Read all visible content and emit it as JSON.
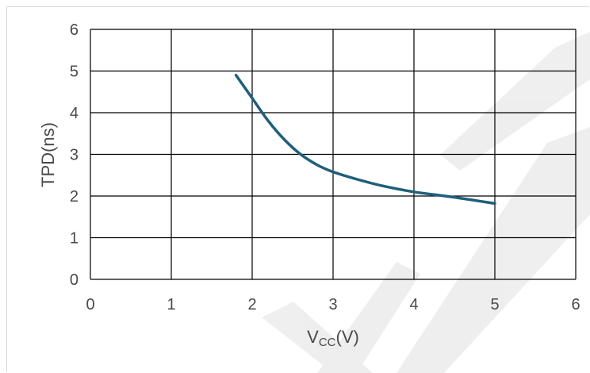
{
  "chart_data": {
    "type": "line",
    "title": "",
    "xlabel": "VCC(V)",
    "xlabel_main": "V",
    "xlabel_sub": "CC",
    "xlabel_unit": "(V)",
    "ylabel": "TPD(ns)",
    "xlim": [
      0,
      6
    ],
    "ylim": [
      0,
      6
    ],
    "xticks": [
      0,
      1,
      2,
      3,
      4,
      5,
      6
    ],
    "yticks": [
      0,
      1,
      2,
      3,
      4,
      5,
      6
    ],
    "grid": true,
    "series": [
      {
        "color": "#1f5f7a",
        "x": [
          1.8,
          2.0,
          2.2,
          2.4,
          2.6,
          2.8,
          3.0,
          3.3,
          3.6,
          4.0,
          4.5,
          5.0
        ],
        "y": [
          4.9,
          4.35,
          3.8,
          3.35,
          3.0,
          2.75,
          2.58,
          2.4,
          2.25,
          2.1,
          1.97,
          1.82
        ]
      }
    ]
  }
}
